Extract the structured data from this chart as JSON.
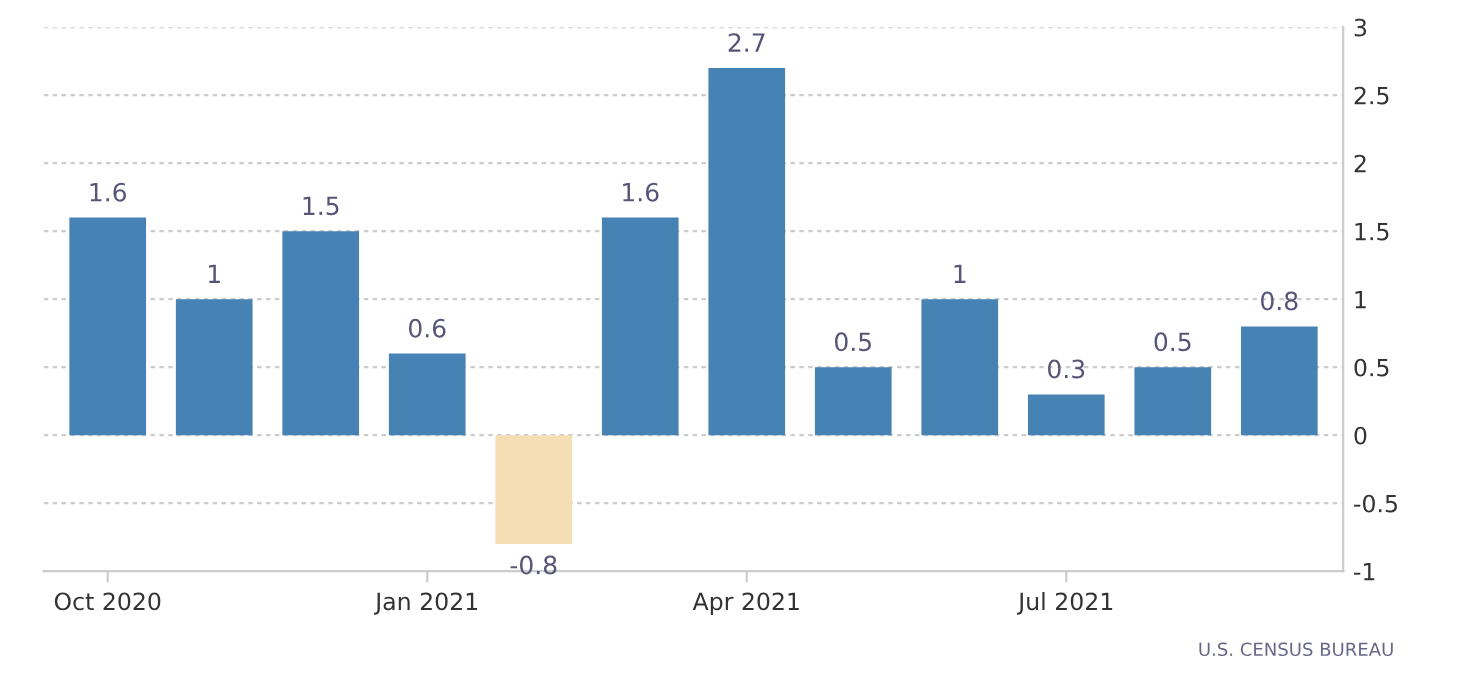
{
  "chart_data": {
    "type": "bar",
    "categories": [
      "Oct 2020",
      null,
      null,
      "Jan 2021",
      null,
      null,
      "Apr 2021",
      null,
      null,
      "Jul 2021",
      null,
      null
    ],
    "values": [
      1.6,
      1,
      1.5,
      0.6,
      -0.8,
      1.6,
      2.7,
      0.5,
      1,
      0.3,
      0.5,
      0.8
    ],
    "colors": [
      "#4682b4",
      "#4682b4",
      "#4682b4",
      "#4682b4",
      "#f5deb3",
      "#4682b4",
      "#4682b4",
      "#4682b4",
      "#4682b4",
      "#4682b4",
      "#4682b4",
      "#4682b4"
    ],
    "ylim": [
      -1,
      3
    ],
    "yticks": [
      -1,
      -0.5,
      0,
      0.5,
      1,
      1.5,
      2,
      2.5,
      3
    ],
    "grid": "y",
    "data_labels": true,
    "annotations": [
      "U.S. CENSUS BUREAU"
    ]
  }
}
